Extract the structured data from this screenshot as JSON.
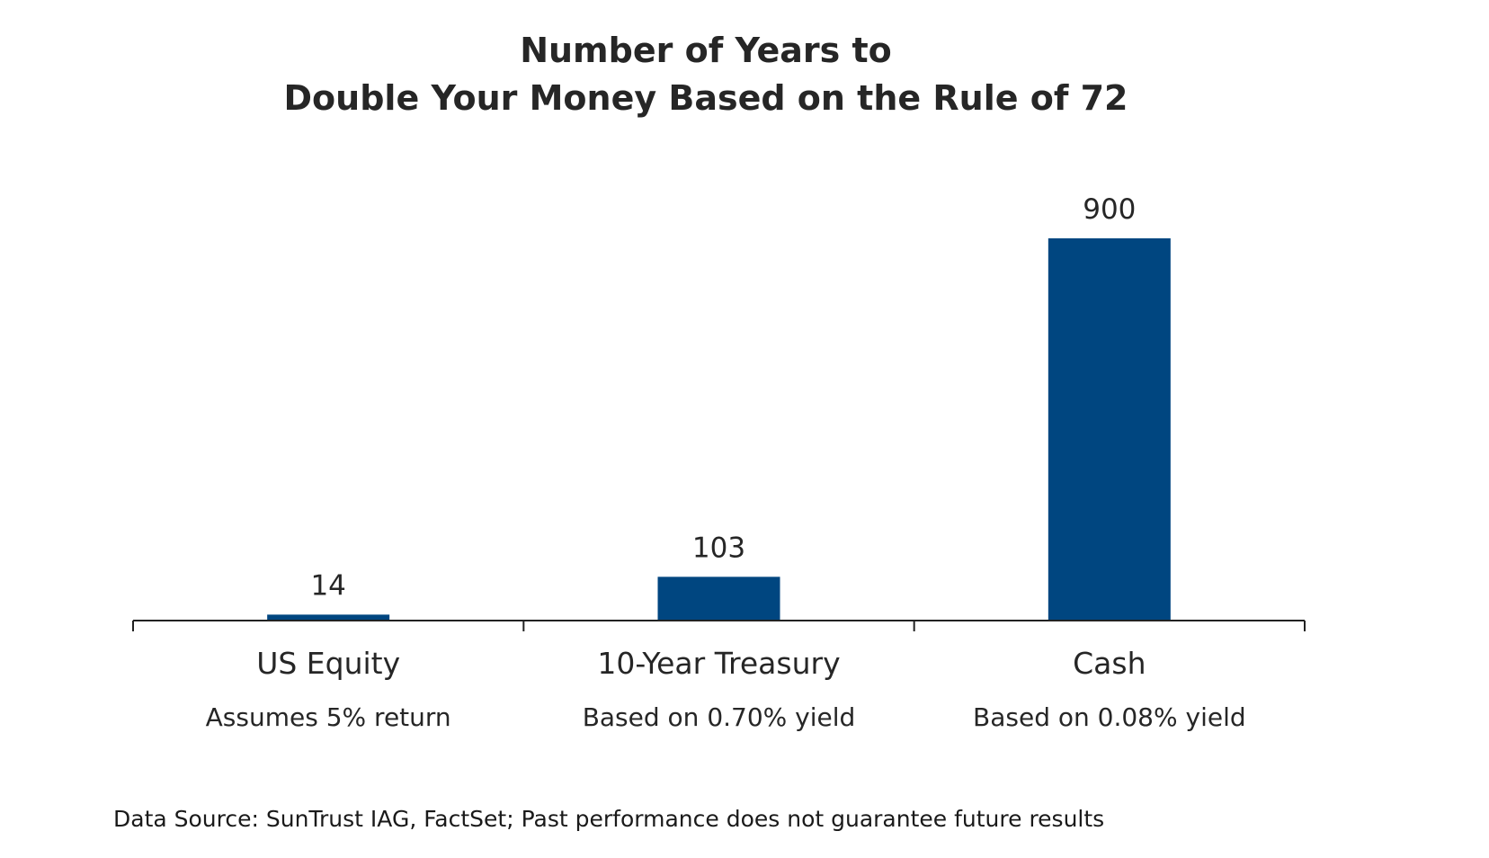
{
  "chart_data": {
    "type": "bar",
    "title_lines": [
      "Number of Years to",
      "Double Your Money Based on the Rule of 72"
    ],
    "categories": [
      "US Equity",
      "10-Year Treasury",
      "Cash"
    ],
    "subcategories": [
      "Assumes 5% return",
      "Based on 0.70% yield",
      "Based on 0.08% yield"
    ],
    "values": [
      14,
      103,
      900
    ],
    "data_labels": [
      "14",
      "103",
      "900"
    ],
    "ylim": [
      0,
      900
    ],
    "grid": false,
    "legend": "none",
    "bar_color": "#004680",
    "axis_color": "#222222",
    "label_color": "#262626"
  },
  "footnote": "Data Source: SunTrust IAG, FactSet; Past performance does not guarantee future results"
}
